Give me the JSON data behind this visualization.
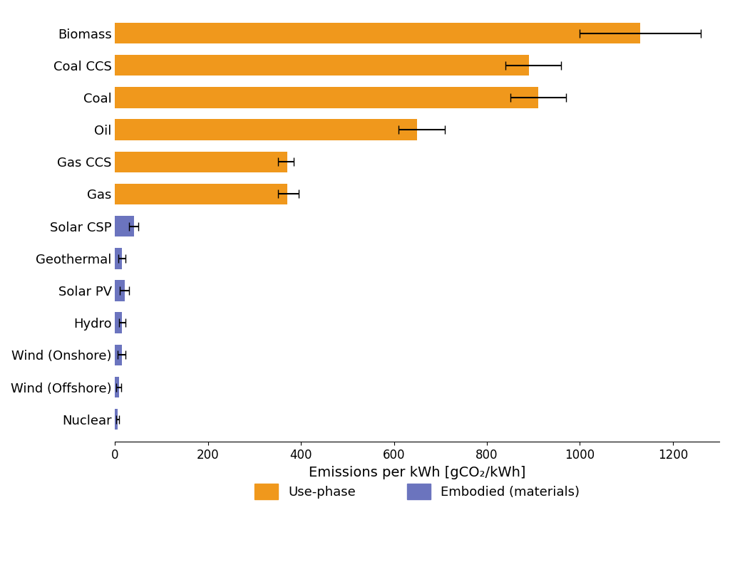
{
  "categories": [
    "Biomass",
    "Coal CCS",
    "Coal",
    "Oil",
    "Gas CCS",
    "Gas",
    "Solar CSP",
    "Geothermal",
    "Solar PV",
    "Hydro",
    "Wind (Onshore)",
    "Wind (Offshore)",
    "Nuclear"
  ],
  "use_phase": [
    1130,
    890,
    910,
    650,
    370,
    370,
    0,
    0,
    0,
    0,
    0,
    0,
    0
  ],
  "embodied": [
    0,
    0,
    0,
    0,
    0,
    0,
    40,
    15,
    20,
    15,
    14,
    8,
    5
  ],
  "use_phase_err_low": [
    130,
    50,
    60,
    40,
    20,
    20,
    0,
    0,
    0,
    0,
    0,
    0,
    0
  ],
  "use_phase_err_high": [
    130,
    70,
    60,
    60,
    15,
    25,
    0,
    0,
    0,
    0,
    0,
    0,
    0
  ],
  "embodied_err_low": [
    0,
    0,
    0,
    0,
    0,
    0,
    10,
    8,
    10,
    7,
    8,
    5,
    3
  ],
  "embodied_err_high": [
    0,
    0,
    0,
    0,
    0,
    0,
    10,
    8,
    10,
    7,
    8,
    5,
    3
  ],
  "use_phase_color": "#F0981C",
  "embodied_color": "#6B74BE",
  "xlim": [
    0,
    1300
  ],
  "xlabel": "Emissions per kWh [gCO₂/kWh]",
  "xlabel_fontsize": 14,
  "tick_fontsize": 12,
  "label_fontsize": 13,
  "legend_fontsize": 13,
  "background_color": "#FFFFFF",
  "bar_height": 0.65,
  "figwidth": 10.24,
  "figheight": 7.96
}
